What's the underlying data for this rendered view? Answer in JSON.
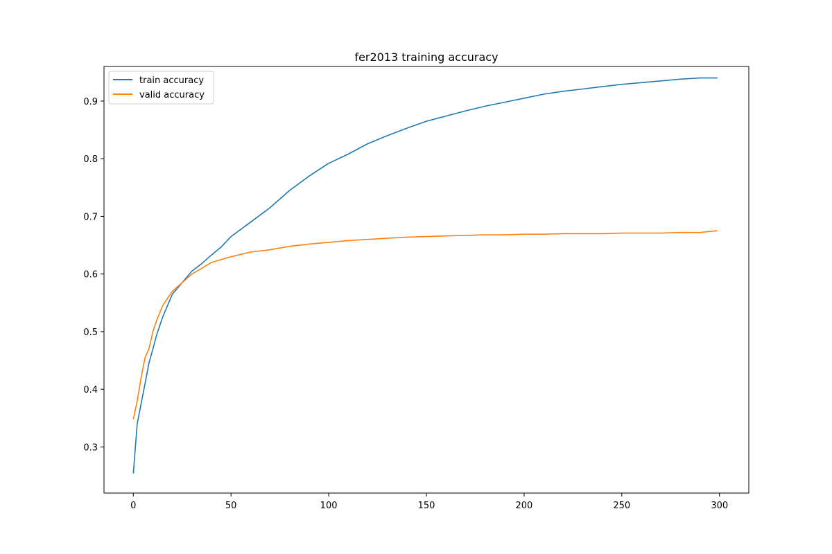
{
  "chart_data": {
    "type": "line",
    "title": "fer2013 training accuracy",
    "xlabel": "",
    "ylabel": "",
    "xlim": [
      -15,
      315
    ],
    "ylim": [
      0.22,
      0.96
    ],
    "x_ticks": [
      0,
      50,
      100,
      150,
      200,
      250,
      300
    ],
    "y_ticks": [
      0.3,
      0.4,
      0.5,
      0.6,
      0.7,
      0.8,
      0.9
    ],
    "x_tick_labels": [
      "0",
      "50",
      "100",
      "150",
      "200",
      "250",
      "300"
    ],
    "y_tick_labels": [
      "0.3",
      "0.4",
      "0.5",
      "0.6",
      "0.7",
      "0.8",
      "0.9"
    ],
    "grid": false,
    "legend_position": "top-left",
    "x": [
      0,
      2,
      4,
      6,
      8,
      10,
      12,
      15,
      20,
      25,
      30,
      35,
      40,
      45,
      50,
      60,
      70,
      80,
      90,
      100,
      110,
      120,
      130,
      140,
      150,
      160,
      170,
      180,
      190,
      200,
      210,
      220,
      230,
      240,
      250,
      260,
      270,
      280,
      290,
      299
    ],
    "series": [
      {
        "name": "train accuracy",
        "color": "#1f77b4",
        "values": [
          0.254,
          0.34,
          0.375,
          0.41,
          0.445,
          0.47,
          0.495,
          0.525,
          0.565,
          0.585,
          0.605,
          0.618,
          0.633,
          0.647,
          0.665,
          0.69,
          0.715,
          0.745,
          0.77,
          0.792,
          0.808,
          0.826,
          0.84,
          0.853,
          0.865,
          0.874,
          0.883,
          0.891,
          0.898,
          0.905,
          0.912,
          0.917,
          0.921,
          0.925,
          0.929,
          0.932,
          0.935,
          0.938,
          0.94,
          0.94
        ]
      },
      {
        "name": "valid accuracy",
        "color": "#ff7f0e",
        "values": [
          0.348,
          0.38,
          0.42,
          0.455,
          0.47,
          0.5,
          0.52,
          0.545,
          0.57,
          0.585,
          0.6,
          0.61,
          0.62,
          0.625,
          0.63,
          0.638,
          0.642,
          0.648,
          0.652,
          0.655,
          0.658,
          0.66,
          0.662,
          0.664,
          0.665,
          0.666,
          0.667,
          0.668,
          0.668,
          0.669,
          0.669,
          0.67,
          0.67,
          0.67,
          0.671,
          0.671,
          0.671,
          0.672,
          0.672,
          0.675
        ]
      }
    ]
  }
}
